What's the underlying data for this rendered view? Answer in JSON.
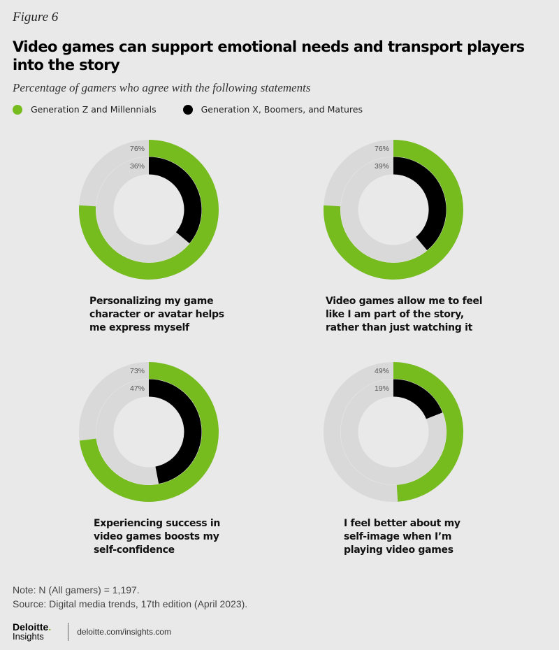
{
  "figure_label": "Figure 6",
  "title": "Video games can support emotional needs and transport players into the story",
  "subtitle": "Percentage of gamers who agree with the following statements",
  "colors": {
    "gen_z": "#77bc1f",
    "gen_x": "#000000",
    "track": "#d9d9d9",
    "background": "#e9e9e9"
  },
  "chart_data": {
    "type": "pie",
    "subtype": "nested-donut",
    "unit": "%",
    "legend": [
      {
        "name": "Generation Z and Millennials",
        "color": "#77bc1f"
      },
      {
        "name": "Generation X, Boomers, and Matures",
        "color": "#000000"
      }
    ],
    "charts": [
      {
        "statement": "Personalizing my game character or avatar helps me express myself",
        "series": [
          {
            "name": "Generation Z and Millennials",
            "value": 76,
            "label": "76%"
          },
          {
            "name": "Generation X, Boomers, and Matures",
            "value": 36,
            "label": "36%"
          }
        ]
      },
      {
        "statement": "Video games allow me to feel like I am part of the story, rather than just watching it",
        "series": [
          {
            "name": "Generation Z and Millennials",
            "value": 76,
            "label": "76%"
          },
          {
            "name": "Generation X, Boomers, and Matures",
            "value": 39,
            "label": "39%"
          }
        ]
      },
      {
        "statement": "Experiencing success in video games boosts my self-confidence",
        "series": [
          {
            "name": "Generation Z and Millennials",
            "value": 73,
            "label": "73%"
          },
          {
            "name": "Generation X, Boomers, and Matures",
            "value": 47,
            "label": "47%"
          }
        ]
      },
      {
        "statement": "I feel better about my self-image when I’m playing video games",
        "series": [
          {
            "name": "Generation Z and Millennials",
            "value": 49,
            "label": "49%"
          },
          {
            "name": "Generation X, Boomers, and Matures",
            "value": 19,
            "label": "19%"
          }
        ]
      }
    ]
  },
  "captions": [
    [
      "Personalizing my game",
      "character or avatar helps",
      "me express myself"
    ],
    [
      "Video games allow me to feel",
      "like I am part of the story,",
      "rather than just watching it"
    ],
    [
      "Experiencing success in",
      "video games boosts my",
      "self-confidence"
    ],
    [
      "I feel better about my",
      "self-image when I’m",
      "playing video games"
    ]
  ],
  "note": "Note: N (All gamers) = 1,197.",
  "source": "Source: Digital media trends, 17th edition (April 2023).",
  "footer": {
    "logo_main": "Deloitte",
    "logo_dot": ".",
    "logo_sub": "Insights",
    "url": "deloitte.com/insights.com"
  }
}
